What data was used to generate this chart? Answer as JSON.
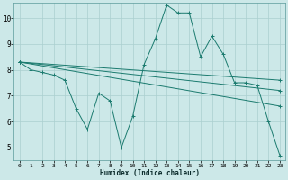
{
  "xlabel": "Humidex (Indice chaleur)",
  "bg_color": "#cce8e8",
  "line_color": "#1a7a6e",
  "grid_color": "#aacfcf",
  "xlim": [
    -0.5,
    23.5
  ],
  "ylim": [
    4.5,
    10.6
  ],
  "xticks": [
    0,
    1,
    2,
    3,
    4,
    5,
    6,
    7,
    8,
    9,
    10,
    11,
    12,
    13,
    14,
    15,
    16,
    17,
    18,
    19,
    20,
    21,
    22,
    23
  ],
  "yticks": [
    5,
    6,
    7,
    8,
    9,
    10
  ],
  "lines": [
    {
      "x": [
        0,
        1,
        2,
        3,
        4,
        5,
        6,
        7,
        8,
        9,
        10,
        11,
        12,
        13,
        14,
        15,
        16,
        17,
        18,
        19,
        20,
        21,
        22,
        23
      ],
      "y": [
        8.3,
        8.0,
        7.9,
        7.8,
        7.6,
        6.5,
        5.7,
        7.1,
        6.8,
        5.0,
        6.2,
        8.2,
        9.2,
        10.5,
        10.2,
        10.2,
        8.5,
        9.3,
        8.6,
        7.5,
        7.5,
        7.4,
        6.0,
        4.7
      ]
    },
    {
      "x": [
        0,
        23
      ],
      "y": [
        8.3,
        7.6
      ]
    },
    {
      "x": [
        0,
        23
      ],
      "y": [
        8.3,
        7.2
      ]
    },
    {
      "x": [
        0,
        23
      ],
      "y": [
        8.3,
        6.6
      ]
    }
  ],
  "marker": "+"
}
